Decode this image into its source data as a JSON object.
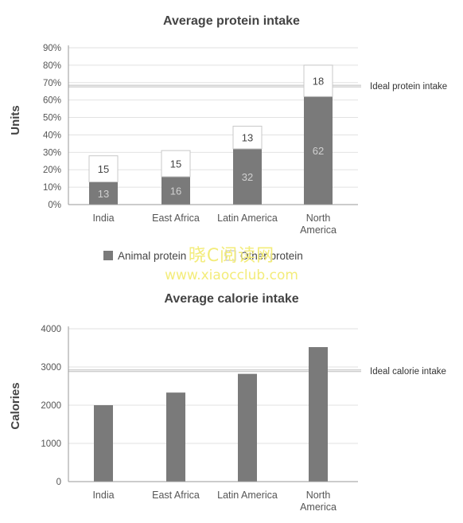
{
  "chart_data": [
    {
      "type": "bar",
      "stacked": true,
      "title": "Average protein intake",
      "ylabel": "Units",
      "xlabel": "",
      "ylim": [
        0,
        90
      ],
      "yticks": [
        "0%",
        "10%",
        "20%",
        "30%",
        "40%",
        "50%",
        "60%",
        "70%",
        "80%",
        "90%"
      ],
      "categories": [
        "India",
        "East Africa",
        "Latin America",
        "North America"
      ],
      "series": [
        {
          "name": "Animal protein",
          "values": [
            13,
            16,
            32,
            62
          ],
          "color": "#7a7a7a"
        },
        {
          "name": "Other protein",
          "values": [
            15,
            15,
            13,
            18
          ],
          "color": "#ffffff"
        }
      ],
      "reference_line": {
        "label": "Ideal protein intake",
        "value": 68
      },
      "legend": "bottom",
      "grid": true
    },
    {
      "type": "bar",
      "title": "Average calorie intake",
      "ylabel": "Calories",
      "xlabel": "",
      "ylim": [
        0,
        4000
      ],
      "yticks": [
        "0",
        "1000",
        "2000",
        "3000",
        "4000"
      ],
      "categories": [
        "India",
        "East Africa",
        "Latin America",
        "North America"
      ],
      "values": [
        2000,
        2330,
        2820,
        3520
      ],
      "color": "#7a7a7a",
      "reference_line": {
        "label": "Ideal calorie intake",
        "value": 2900
      },
      "grid": true
    }
  ],
  "watermark": {
    "text": "晓C阅读网",
    "url": "www.xiaocclub.com"
  }
}
